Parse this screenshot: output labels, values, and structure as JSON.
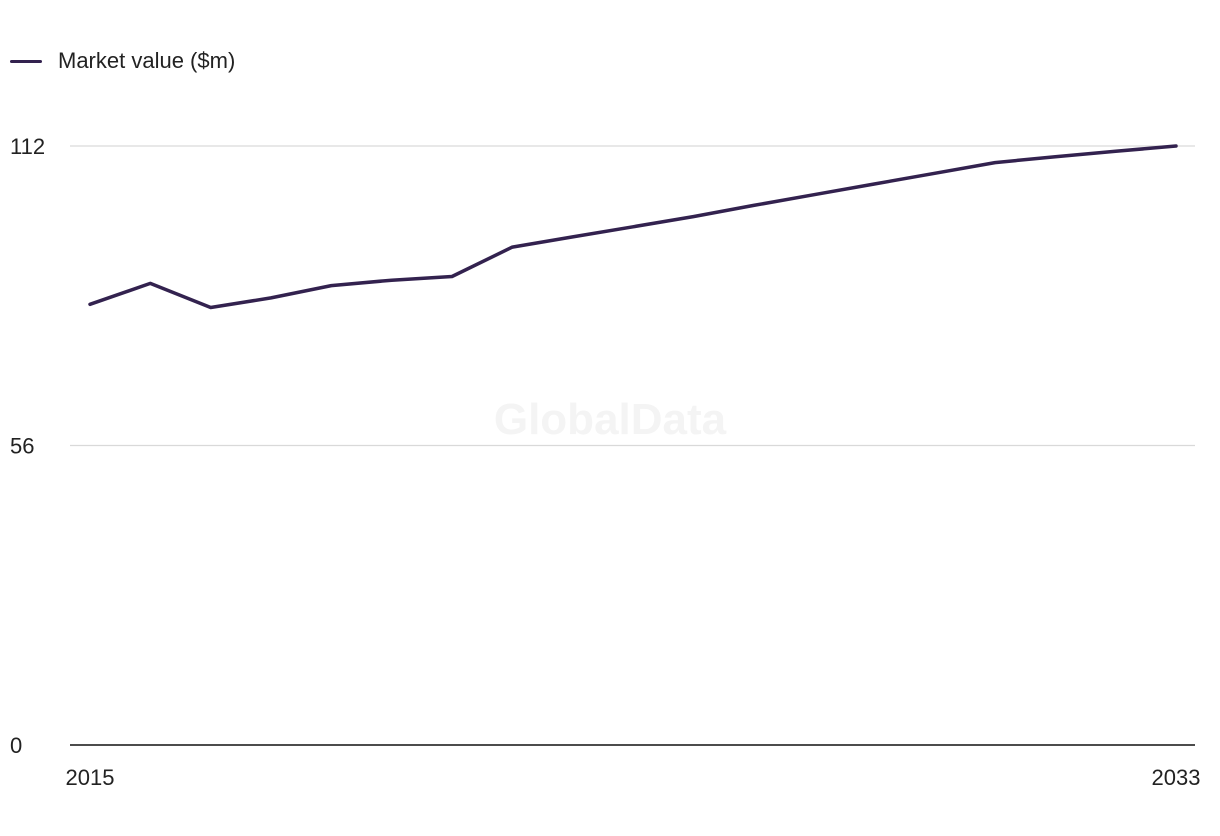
{
  "legend": {
    "label": "Market value ($m)"
  },
  "watermark": "GlobalData",
  "colors": {
    "series": "#33224f",
    "grid": "#d9d9d9",
    "axis": "#111111",
    "text": "#222222"
  },
  "chart_data": {
    "type": "line",
    "title": "",
    "xlabel": "",
    "ylabel": "",
    "x": [
      2015,
      2016,
      2017,
      2018,
      2019,
      2020,
      2021,
      2022,
      2023,
      2024,
      2025,
      2026,
      2027,
      2028,
      2029,
      2030,
      2031,
      2032,
      2033
    ],
    "series": [
      {
        "name": "Market value ($m)",
        "values": [
          82.4,
          86.3,
          81.8,
          83.6,
          85.9,
          86.9,
          87.6,
          93.1,
          95.0,
          96.9,
          98.8,
          100.9,
          102.9,
          104.9,
          106.9,
          108.9,
          110.0,
          111.0,
          112.0
        ]
      }
    ],
    "ylim": [
      0,
      112
    ],
    "yticks": [
      "0",
      "56",
      "112"
    ],
    "xticks": [
      "2015",
      "2033"
    ],
    "grid": true,
    "legend": "top-left"
  }
}
